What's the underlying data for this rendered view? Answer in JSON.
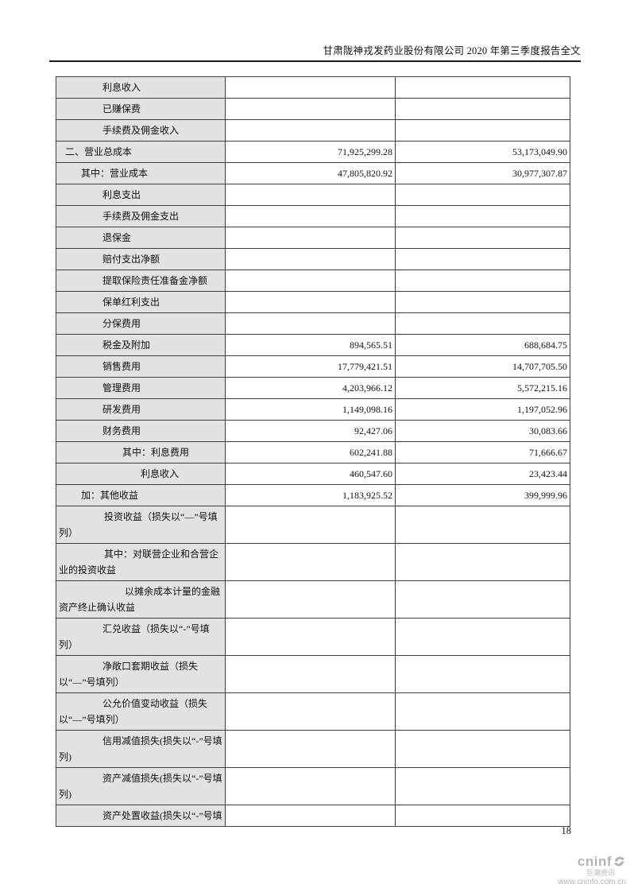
{
  "header": {
    "title": "甘肃陇神戎发药业股份有限公司 2020 年第三季度报告全文"
  },
  "table": {
    "rows": [
      {
        "label": "利息收入",
        "current": "",
        "prior": "",
        "indent": 55
      },
      {
        "label": "已赚保费",
        "current": "",
        "prior": "",
        "indent": 55
      },
      {
        "label": "手续费及佣金收入",
        "current": "",
        "prior": "",
        "indent": 55
      },
      {
        "label": "二、营业总成本",
        "current": "71,925,299.28",
        "prior": "53,173,049.90",
        "indent": 8
      },
      {
        "label": "其中：营业成本",
        "current": "47,805,820.92",
        "prior": "30,977,307.87",
        "indent": 28
      },
      {
        "label": "利息支出",
        "current": "",
        "prior": "",
        "indent": 55
      },
      {
        "label": "手续费及佣金支出",
        "current": "",
        "prior": "",
        "indent": 55
      },
      {
        "label": "退保金",
        "current": "",
        "prior": "",
        "indent": 55
      },
      {
        "label": "赔付支出净额",
        "current": "",
        "prior": "",
        "indent": 55
      },
      {
        "label": "提取保险责任准备金净额",
        "current": "",
        "prior": "",
        "indent": 55
      },
      {
        "label": "保单红利支出",
        "current": "",
        "prior": "",
        "indent": 55
      },
      {
        "label": "分保费用",
        "current": "",
        "prior": "",
        "indent": 55
      },
      {
        "label": "税金及附加",
        "current": "894,565.51",
        "prior": "688,684.75",
        "indent": 55
      },
      {
        "label": "销售费用",
        "current": "17,779,421.51",
        "prior": "14,707,705.50",
        "indent": 55
      },
      {
        "label": "管理费用",
        "current": "4,203,966.12",
        "prior": "5,572,215.16",
        "indent": 55
      },
      {
        "label": "研发费用",
        "current": "1,149,098.16",
        "prior": "1,197,052.96",
        "indent": 55
      },
      {
        "label": "财务费用",
        "current": "92,427.06",
        "prior": "30,083.66",
        "indent": 55
      },
      {
        "label": "其中：利息费用",
        "current": "602,241.88",
        "prior": "71,666.67",
        "indent": 80
      },
      {
        "label": "利息收入",
        "current": "460,547.60",
        "prior": "23,423.44",
        "indent": 103
      },
      {
        "label": "加：其他收益",
        "current": "1,183,925.52",
        "prior": "399,999.96",
        "indent": 28
      },
      {
        "label": "投资收益（损失以“—”号填列）",
        "current": "",
        "prior": "",
        "indent": 57
      },
      {
        "label": "其中：对联营企业和合营企业的投资收益",
        "current": "",
        "prior": "",
        "indent": 57
      },
      {
        "label": "以摊余成本计量的金融资产终止确认收益",
        "current": "",
        "prior": "",
        "indent": 83
      },
      {
        "label": "汇兑收益（损失以“-”号填列）",
        "current": "",
        "prior": "",
        "indent": 55
      },
      {
        "label": "净敞口套期收益（损失以“—”号填列）",
        "current": "",
        "prior": "",
        "indent": 55
      },
      {
        "label": "公允价值变动收益（损失以“—”号填列）",
        "current": "",
        "prior": "",
        "indent": 55
      },
      {
        "label": "信用减值损失(损失以“-”号填列)",
        "current": "",
        "prior": "",
        "indent": 55
      },
      {
        "label": "资产减值损失(损失以“-”号填列)",
        "current": "",
        "prior": "",
        "indent": 55
      },
      {
        "label": "资产处置收益(损失以“-”号填",
        "current": "",
        "prior": "",
        "indent": 55
      }
    ]
  },
  "footer": {
    "page_number": "18",
    "logo_text": "cninf",
    "logo_caption": "巨潮资讯",
    "logo_url": "www.cninfo.com.cn"
  },
  "colors": {
    "label_cell_bg": "#e2e2e2",
    "table_border": "#3f3f3f",
    "logo_gray": "#b3b3b3"
  }
}
